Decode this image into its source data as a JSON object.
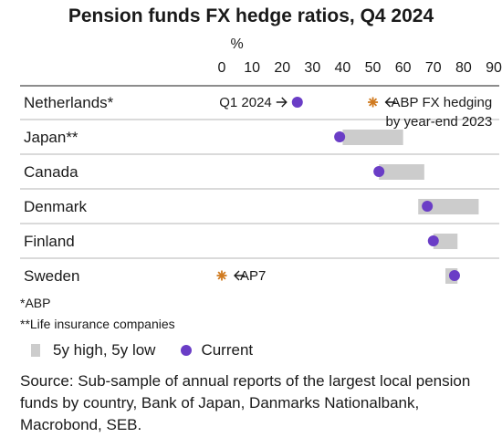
{
  "title": "Pension funds FX hedge ratios, Q4 2024",
  "chart_data": {
    "type": "dot-range",
    "unit": "%",
    "xlim": [
      0,
      90
    ],
    "ticks": [
      0,
      10,
      20,
      30,
      40,
      50,
      60,
      70,
      80,
      90
    ],
    "grid": false,
    "rows": [
      {
        "label": "Netherlands*",
        "current": 25,
        "range": null
      },
      {
        "label": "Japan**",
        "current": 39,
        "range": [
          40,
          60
        ]
      },
      {
        "label": "Canada",
        "current": 52,
        "range": [
          52,
          67
        ]
      },
      {
        "label": "Denmark",
        "current": 68,
        "range": [
          65,
          85
        ]
      },
      {
        "label": "Finland",
        "current": 70,
        "range": [
          70,
          78
        ]
      },
      {
        "label": "Sweden",
        "current": 77,
        "range": [
          74,
          78
        ]
      }
    ],
    "annotations": [
      {
        "row": "Netherlands*",
        "marker": "dot",
        "value": 25,
        "text": "Q1 2024"
      },
      {
        "row": "Netherlands*",
        "marker": "star",
        "value": 50,
        "text": "ABP FX hedging",
        "text2": "by year-end 2023"
      },
      {
        "row": "Sweden",
        "marker": "star",
        "value": 0,
        "text": "AP7"
      }
    ],
    "series": [
      {
        "name": "5y high, 5y low",
        "color": "#cccccc"
      },
      {
        "name": "Current",
        "color": "#6a3dc6"
      }
    ],
    "star_color": "#d07a1f",
    "axis_color": "#b5b5b5"
  },
  "footnotes": [
    "*ABP",
    "**Life insurance companies"
  ],
  "legend": {
    "range_label": "5y high, 5y low",
    "current_label": "Current"
  },
  "source": "Source: Sub-sample of annual reports of the largest local pension funds by country, Bank of Japan, Danmarks Nationalbank, Macrobond, SEB."
}
